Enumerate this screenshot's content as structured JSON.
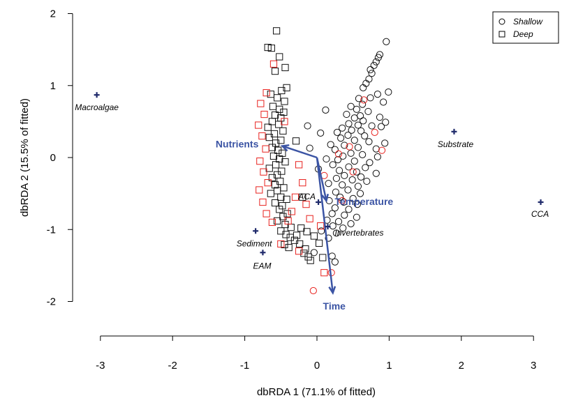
{
  "chart_data": {
    "type": "scatter",
    "xlabel": "dbRDA 1 (71.1% of fitted)",
    "ylabel": "dbRDA 2 (15.5% of fitted)",
    "xlim": [
      -3.35,
      3.15
    ],
    "ylim": [
      -2.2,
      2.2
    ],
    "xticks": [
      -3,
      -2,
      -1,
      0,
      1,
      2,
      3
    ],
    "yticks": [
      -2,
      -1,
      0,
      1,
      2
    ],
    "colors": {
      "red": "#e8211d",
      "black": "#111111",
      "blue": "#3b54a4",
      "navy": "#1f2a6b"
    },
    "legend": {
      "position": "top-right",
      "entries": [
        {
          "label": "Shallow",
          "marker": "circle"
        },
        {
          "label": "Deep",
          "marker": "square"
        }
      ]
    },
    "series": [
      {
        "name": "Shallow",
        "marker": "circle",
        "points": [
          [
            0.96,
            1.61
          ],
          [
            0.87,
            1.43
          ],
          [
            0.85,
            1.39
          ],
          [
            0.82,
            1.33
          ],
          [
            0.79,
            1.28
          ],
          [
            0.74,
            1.22
          ],
          [
            0.76,
            1.17
          ],
          [
            0.72,
            1.09
          ],
          [
            0.68,
            1.03
          ],
          [
            0.64,
            0.97
          ],
          [
            0.99,
            0.91
          ],
          [
            0.84,
            0.88
          ],
          [
            0.74,
            0.83
          ],
          [
            0.58,
            0.82
          ],
          [
            0.92,
            0.77
          ],
          [
            0.63,
            0.74
          ],
          [
            0.47,
            0.71
          ],
          [
            0.55,
            0.67
          ],
          [
            0.71,
            0.64
          ],
          [
            0.87,
            0.56
          ],
          [
            0.41,
            0.6
          ],
          [
            0.52,
            0.55
          ],
          [
            0.64,
            0.51
          ],
          [
            0.95,
            0.49
          ],
          [
            0.44,
            0.47
          ],
          [
            0.57,
            0.45
          ],
          [
            0.76,
            0.44
          ],
          [
            0.89,
            0.43
          ],
          [
            0.35,
            0.41
          ],
          [
            0.48,
            0.38
          ],
          [
            0.61,
            0.37
          ],
          [
            0.28,
            0.35
          ],
          [
            0.43,
            0.31
          ],
          [
            0.66,
            0.3
          ],
          [
            0.33,
            0.27
          ],
          [
            0.52,
            0.24
          ],
          [
            0.72,
            0.22
          ],
          [
            0.94,
            0.2
          ],
          [
            0.19,
            0.18
          ],
          [
            0.38,
            0.17
          ],
          [
            0.57,
            0.14
          ],
          [
            0.82,
            0.12
          ],
          [
            0.25,
            0.11
          ],
          [
            0.47,
            0.06
          ],
          [
            0.63,
            0.04
          ],
          [
            0.36,
            0.02
          ],
          [
            0.84,
            0.01
          ],
          [
            0.13,
            -0.02
          ],
          [
            0.29,
            -0.03
          ],
          [
            0.52,
            -0.05
          ],
          [
            0.73,
            -0.07
          ],
          [
            0.22,
            -0.1
          ],
          [
            0.44,
            -0.13
          ],
          [
            0.67,
            -0.14
          ],
          [
            0.31,
            -0.18
          ],
          [
            0.55,
            -0.2
          ],
          [
            0.82,
            -0.22
          ],
          [
            0.38,
            -0.25
          ],
          [
            0.61,
            -0.27
          ],
          [
            0.27,
            -0.29
          ],
          [
            0.49,
            -0.31
          ],
          [
            0.69,
            -0.33
          ],
          [
            0.16,
            -0.36
          ],
          [
            0.35,
            -0.38
          ],
          [
            0.57,
            -0.4
          ],
          [
            0.43,
            -0.45
          ],
          [
            0.26,
            -0.48
          ],
          [
            0.6,
            -0.5
          ],
          [
            0.32,
            -0.55
          ],
          [
            0.5,
            -0.57
          ],
          [
            0.17,
            -0.6
          ],
          [
            0.37,
            -0.62
          ],
          [
            0.56,
            -0.65
          ],
          [
            0.25,
            -0.7
          ],
          [
            0.44,
            -0.72
          ],
          [
            0.21,
            -0.78
          ],
          [
            0.38,
            -0.8
          ],
          [
            0.55,
            -0.83
          ],
          [
            0.14,
            -0.87
          ],
          [
            0.3,
            -0.89
          ],
          [
            0.47,
            -0.92
          ],
          [
            0.22,
            -0.95
          ],
          [
            0.36,
            -0.98
          ],
          [
            0.06,
            -1.02
          ],
          [
            0.27,
            -1.05
          ],
          [
            0.16,
            -1.12
          ],
          [
            0.21,
            -1.37
          ],
          [
            0.25,
            -1.45
          ],
          [
            -0.04,
            -1.32
          ],
          [
            -0.13,
            0.44
          ],
          [
            0.05,
            0.34
          ],
          [
            -0.1,
            0.13
          ],
          [
            0.02,
            -0.16
          ],
          [
            0.12,
            0.66
          ],
          [
            0.6,
            0.58
          ]
        ]
      },
      {
        "name": "Deep",
        "marker": "square",
        "points": [
          [
            -0.56,
            1.76
          ],
          [
            -0.68,
            1.53
          ],
          [
            -0.63,
            1.52
          ],
          [
            -0.52,
            1.4
          ],
          [
            -0.44,
            1.25
          ],
          [
            -0.58,
            1.2
          ],
          [
            -0.42,
            0.97
          ],
          [
            -0.49,
            0.93
          ],
          [
            -0.64,
            0.88
          ],
          [
            -0.55,
            0.83
          ],
          [
            -0.45,
            0.78
          ],
          [
            -0.61,
            0.71
          ],
          [
            -0.52,
            0.67
          ],
          [
            -0.46,
            0.63
          ],
          [
            -0.58,
            0.59
          ],
          [
            -0.5,
            0.55
          ],
          [
            -0.62,
            0.5
          ],
          [
            -0.53,
            0.46
          ],
          [
            -0.68,
            0.42
          ],
          [
            -0.47,
            0.37
          ],
          [
            -0.59,
            0.33
          ],
          [
            -0.66,
            0.28
          ],
          [
            -0.5,
            0.24
          ],
          [
            -0.57,
            0.2
          ],
          [
            -0.29,
            0.23
          ],
          [
            -0.62,
            0.14
          ],
          [
            -0.54,
            0.1
          ],
          [
            -0.48,
            0.06
          ],
          [
            -0.6,
            0.02
          ],
          [
            -0.52,
            -0.02
          ],
          [
            -0.44,
            -0.06
          ],
          [
            -0.57,
            -0.1
          ],
          [
            -0.66,
            -0.15
          ],
          [
            -0.49,
            -0.19
          ],
          [
            -0.55,
            -0.24
          ],
          [
            -0.62,
            -0.28
          ],
          [
            -0.51,
            -0.33
          ],
          [
            -0.58,
            -0.38
          ],
          [
            -0.46,
            -0.42
          ],
          [
            -0.55,
            -0.46
          ],
          [
            -0.64,
            -0.5
          ],
          [
            -0.5,
            -0.55
          ],
          [
            -0.42,
            -0.58
          ],
          [
            -0.58,
            -0.63
          ],
          [
            -0.48,
            -0.67
          ],
          [
            -0.52,
            -0.72
          ],
          [
            -0.41,
            -0.78
          ],
          [
            -0.47,
            -0.82
          ],
          [
            -0.55,
            -0.88
          ],
          [
            -0.44,
            -0.93
          ],
          [
            -0.36,
            -0.97
          ],
          [
            -0.5,
            -1.02
          ],
          [
            -0.43,
            -1.07
          ],
          [
            -0.37,
            -1.11
          ],
          [
            -0.31,
            -1.15
          ],
          [
            -0.45,
            -1.21
          ],
          [
            -0.39,
            -1.25
          ],
          [
            -0.24,
            -1.2
          ],
          [
            -0.16,
            -1.27
          ],
          [
            -0.12,
            -1.38
          ],
          [
            -0.09,
            -1.43
          ],
          [
            -0.18,
            -1.33
          ],
          [
            0.08,
            -1.39
          ],
          [
            -0.28,
            -1.08
          ],
          [
            -0.22,
            -0.98
          ],
          [
            -0.14,
            -1.03
          ],
          [
            -0.04,
            -1.09
          ],
          [
            0.03,
            -1.19
          ],
          [
            -0.2,
            -0.55
          ]
        ]
      },
      {
        "name": "Shallow-red",
        "marker": "circle",
        "points": [
          [
            0.5,
            -0.2
          ],
          [
            0.65,
            0.8
          ],
          [
            0.8,
            0.35
          ],
          [
            0.35,
            -0.6
          ],
          [
            0.45,
            0.15
          ],
          [
            0.9,
            0.1
          ],
          [
            0.3,
            0.05
          ],
          [
            0.1,
            -0.25
          ],
          [
            0.2,
            -1.6
          ],
          [
            -0.05,
            -1.85
          ]
        ]
      },
      {
        "name": "Deep-red",
        "marker": "square",
        "points": [
          [
            -0.7,
            0.9
          ],
          [
            -0.78,
            0.75
          ],
          [
            -0.73,
            0.6
          ],
          [
            -0.81,
            0.45
          ],
          [
            -0.76,
            0.3
          ],
          [
            -0.71,
            0.12
          ],
          [
            -0.79,
            -0.05
          ],
          [
            -0.74,
            -0.2
          ],
          [
            -0.68,
            -0.35
          ],
          [
            -0.8,
            -0.45
          ],
          [
            -0.75,
            -0.62
          ],
          [
            -0.7,
            -0.78
          ],
          [
            -0.62,
            -0.9
          ],
          [
            -0.35,
            -0.75
          ],
          [
            -0.3,
            -0.55
          ],
          [
            -0.2,
            -0.35
          ],
          [
            -0.1,
            -0.85
          ],
          [
            0.05,
            -0.95
          ],
          [
            -0.4,
            -0.88
          ],
          [
            -0.25,
            -1.3
          ],
          [
            0.1,
            -1.6
          ],
          [
            -0.45,
            0.5
          ],
          [
            -0.6,
            1.3
          ],
          [
            -0.25,
            -0.1
          ],
          [
            -0.15,
            -0.65
          ],
          [
            -0.5,
            -1.2
          ]
        ]
      }
    ],
    "species": [
      {
        "label": "Macroalgae",
        "x": -3.05,
        "y": 0.87
      },
      {
        "label": "Substrate",
        "x": 1.9,
        "y": 0.36
      },
      {
        "label": "CCA",
        "x": 3.1,
        "y": -0.62
      },
      {
        "label": "ACA",
        "x": 0.02,
        "y": -0.62
      },
      {
        "label": "Invertebrates",
        "x": 0.15,
        "y": -0.96
      },
      {
        "label": "Sediment",
        "x": -0.85,
        "y": -1.02
      },
      {
        "label": "EAM",
        "x": -0.75,
        "y": -1.32
      }
    ],
    "vectors": [
      {
        "label": "Nutrients",
        "x": -0.48,
        "y": 0.16
      },
      {
        "label": "Temperature",
        "x": 0.13,
        "y": -0.6
      },
      {
        "label": "Time",
        "x": 0.22,
        "y": -1.88
      }
    ]
  }
}
